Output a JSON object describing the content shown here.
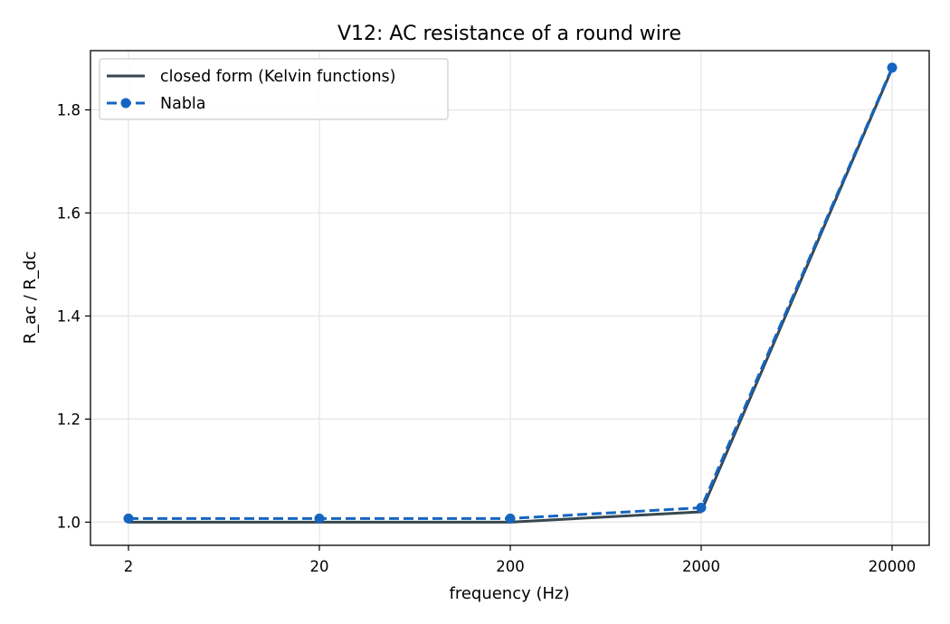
{
  "chart_data": {
    "type": "line",
    "title": "V12: AC resistance of a round wire",
    "xlabel": "frequency (Hz)",
    "ylabel": "R_ac / R_dc",
    "categories": [
      "2",
      "20",
      "200",
      "2000",
      "20000"
    ],
    "ylim": [
      0.955,
      1.915
    ],
    "yticks": [
      "1.0",
      "1.2",
      "1.4",
      "1.6",
      "1.8"
    ],
    "ytick_values": [
      1.0,
      1.2,
      1.4,
      1.6,
      1.8
    ],
    "grid": true,
    "legend_position": "top-left",
    "series": [
      {
        "name": "closed form (Kelvin functions)",
        "values": [
          1.0,
          1.0,
          1.0,
          1.02,
          1.88
        ],
        "color": "#37474f",
        "style": "solid",
        "markers": false
      },
      {
        "name": "Nabla",
        "values": [
          1.007,
          1.007,
          1.007,
          1.028,
          1.882
        ],
        "color": "#1565c0",
        "style": "dashed",
        "markers": true
      }
    ]
  }
}
